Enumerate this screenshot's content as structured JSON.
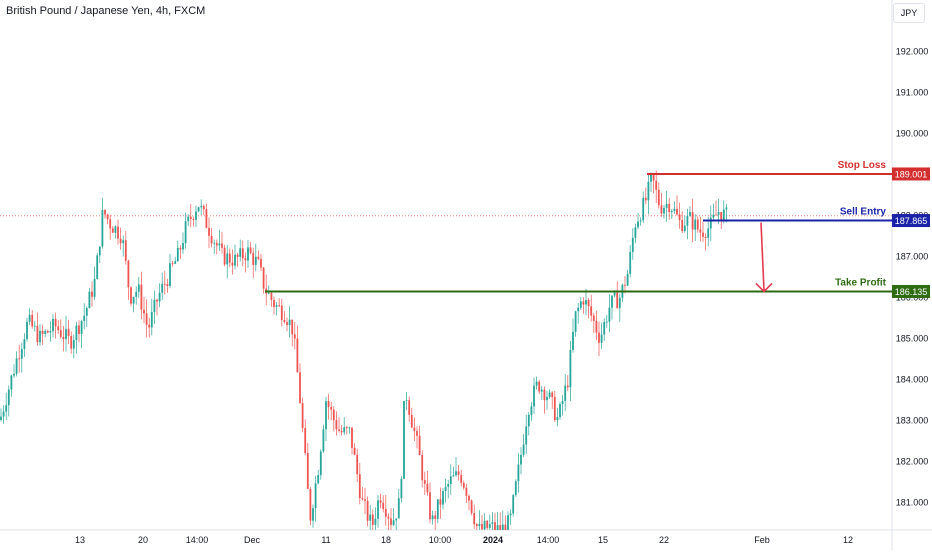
{
  "header": {
    "title": "British Pound / Japanese Yen, 4h, FXCM",
    "currency": "JPY"
  },
  "colors": {
    "up": "#26a69a",
    "down": "#ef5350",
    "stop_loss": "#d32f2f",
    "sell_entry": "#1a23a8",
    "take_profit": "#2e6b12",
    "arrow": "#e53950"
  },
  "chart_data": {
    "type": "candlestick",
    "title": "British Pound / Japanese Yen, 4h, FXCM",
    "ylim": [
      180.3,
      193.0
    ],
    "y_ticks": [
      "192.000",
      "191.000",
      "190.000",
      "189.000",
      "188.000",
      "187.000",
      "186.000",
      "185.000",
      "184.000",
      "183.000",
      "182.000",
      "181.000"
    ],
    "x_ticks": [
      "13",
      "20",
      "14:00",
      "Dec",
      "11",
      "18",
      "10:00",
      "2024",
      "14:00",
      "15",
      "22",
      "Feb",
      "12"
    ],
    "current_price_line": 187.98,
    "levels": [
      {
        "name": "Stop Loss",
        "label": "Stop Loss",
        "value": "189.001"
      },
      {
        "name": "Sell Entry",
        "label": "Sell Entry",
        "value": "187.865"
      },
      {
        "name": "Take Profit",
        "label": "Take Profit",
        "value": "186.135"
      }
    ],
    "price_path": [
      [
        0,
        183.0
      ],
      [
        18,
        184.6
      ],
      [
        28,
        185.4
      ],
      [
        40,
        185.0
      ],
      [
        55,
        185.3
      ],
      [
        70,
        184.9
      ],
      [
        85,
        185.6
      ],
      [
        95,
        186.4
      ],
      [
        103,
        188.1
      ],
      [
        110,
        187.8
      ],
      [
        122,
        187.5
      ],
      [
        130,
        186.0
      ],
      [
        138,
        186.2
      ],
      [
        148,
        185.2
      ],
      [
        158,
        186.0
      ],
      [
        168,
        186.5
      ],
      [
        178,
        187.0
      ],
      [
        186,
        187.7
      ],
      [
        198,
        188.3
      ],
      [
        210,
        187.6
      ],
      [
        222,
        187.0
      ],
      [
        235,
        186.9
      ],
      [
        248,
        187.1
      ],
      [
        258,
        186.8
      ],
      [
        265,
        186.2
      ],
      [
        275,
        185.8
      ],
      [
        285,
        185.6
      ],
      [
        293,
        185.2
      ],
      [
        300,
        183.5
      ],
      [
        310,
        180.6
      ],
      [
        318,
        181.8
      ],
      [
        326,
        183.5
      ],
      [
        334,
        183.0
      ],
      [
        340,
        182.7
      ],
      [
        350,
        182.7
      ],
      [
        362,
        181.0
      ],
      [
        372,
        180.4
      ],
      [
        380,
        181.2
      ],
      [
        392,
        180.5
      ],
      [
        400,
        181.0
      ],
      [
        405,
        183.8
      ],
      [
        410,
        183.2
      ],
      [
        418,
        182.3
      ],
      [
        425,
        181.3
      ],
      [
        432,
        180.5
      ],
      [
        440,
        181.0
      ],
      [
        450,
        181.5
      ],
      [
        460,
        181.7
      ],
      [
        468,
        181.2
      ],
      [
        478,
        180.3
      ],
      [
        490,
        180.4
      ],
      [
        500,
        180.3
      ],
      [
        510,
        180.5
      ],
      [
        520,
        182.0
      ],
      [
        528,
        183.3
      ],
      [
        538,
        183.9
      ],
      [
        548,
        183.6
      ],
      [
        558,
        183.0
      ],
      [
        568,
        184.0
      ],
      [
        575,
        185.5
      ],
      [
        583,
        186.0
      ],
      [
        592,
        185.5
      ],
      [
        600,
        185.0
      ],
      [
        610,
        185.8
      ],
      [
        620,
        186.0
      ],
      [
        628,
        186.6
      ],
      [
        635,
        187.8
      ],
      [
        645,
        188.3
      ],
      [
        652,
        188.9
      ],
      [
        660,
        188.2
      ],
      [
        670,
        188.3
      ],
      [
        680,
        187.8
      ],
      [
        690,
        187.9
      ],
      [
        700,
        187.6
      ],
      [
        710,
        187.7
      ],
      [
        718,
        188.1
      ],
      [
        728,
        187.95
      ]
    ]
  },
  "annotation": {
    "arrow_target": "Take Profit"
  }
}
